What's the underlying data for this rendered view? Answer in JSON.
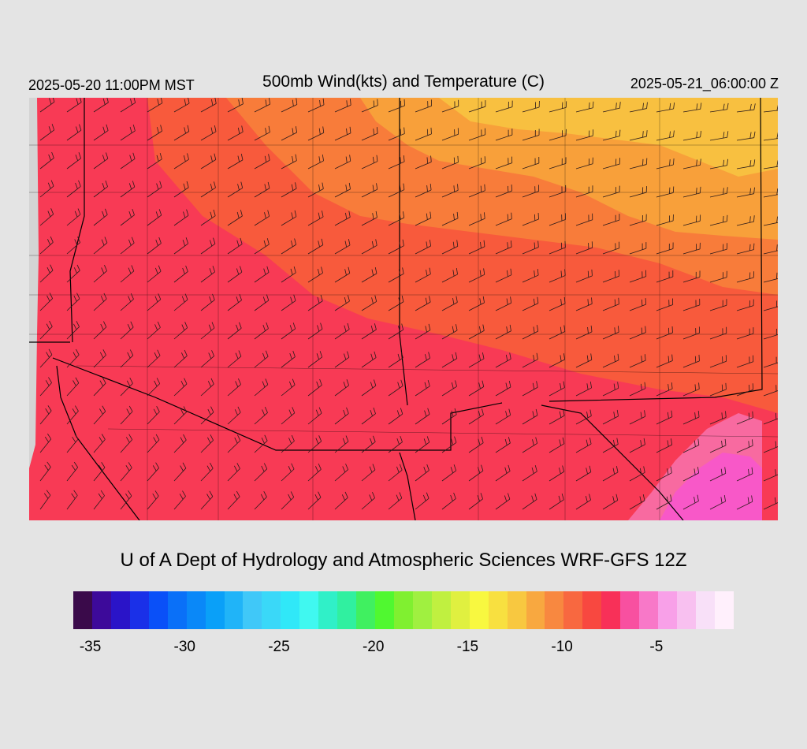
{
  "header": {
    "local_time": "2025-05-20 11:00PM MST",
    "title": "500mb Wind(kts) and Temperature (C)",
    "valid_time": "2025-05-21_06:00:00 Z"
  },
  "footer": {
    "credit": "U of A Dept of Hydrology and Atmospheric Sciences WRF-GFS 12Z"
  },
  "colorbar": {
    "colors": [
      "#3a0a4a",
      "#3d0a9a",
      "#2a14c8",
      "#1a30e8",
      "#0a50f8",
      "#0a70f8",
      "#0a88f8",
      "#0aa0f8",
      "#20b4f8",
      "#40c8f8",
      "#3ad8f8",
      "#30e8f8",
      "#40f8f0",
      "#30f0c8",
      "#30f0a0",
      "#40f060",
      "#50f830",
      "#80f030",
      "#a0f040",
      "#c0f040",
      "#e0f040",
      "#f8f840",
      "#f8e040",
      "#f8c840",
      "#f8a840",
      "#f88840",
      "#f86840",
      "#f84840",
      "#f83058",
      "#f850a0",
      "#f878c8",
      "#f8a0e8",
      "#f8c0f0",
      "#f8e0f8",
      "#fff0fc"
    ],
    "tick_labels": [
      "-35",
      "-30",
      "-25",
      "-20",
      "-15",
      "-10",
      "-5"
    ]
  },
  "map": {
    "field": "500mb temperature (C) with wind barbs (kts)",
    "background_color": "#d4d4d4",
    "boundary_color": "#000000",
    "colors": {
      "warm_zone": "#f83a55",
      "mid_zone": "#f85a3c",
      "orange_zone": "#f87c3a",
      "amber_zone": "#f8a03a",
      "yellow_zone": "#f8c040",
      "pink_zone": "#f86aa0",
      "magenta_zone": "#f858c8"
    }
  }
}
